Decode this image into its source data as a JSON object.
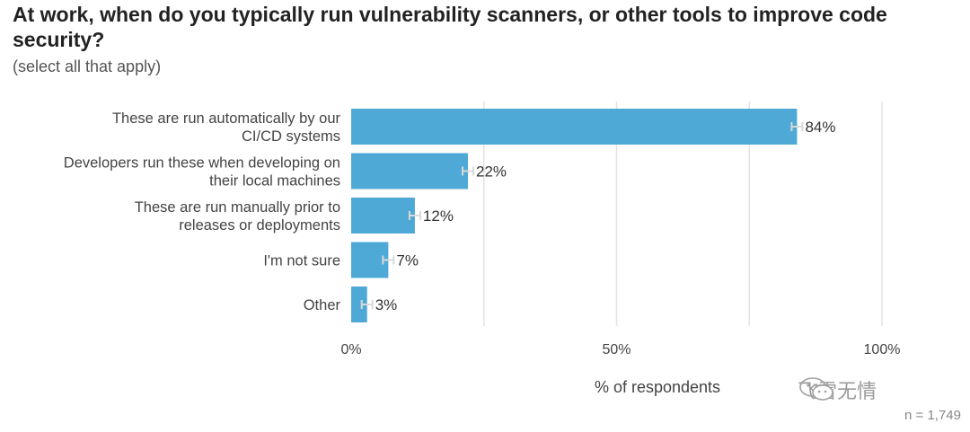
{
  "title": "At work, when do you typically run vulnerability scanners, or other tools to improve code security?",
  "subtitle": "(select all that apply)",
  "watermark": "飞雪无情",
  "n_label": "n =  1,749",
  "chart_data": {
    "type": "bar",
    "orientation": "horizontal",
    "categories": [
      [
        "These are run automatically by our",
        "CI/CD systems"
      ],
      [
        "Developers run these when developing on",
        "their local machines"
      ],
      [
        "These are run manually prior to",
        "releases or deployments"
      ],
      [
        "I'm not sure"
      ],
      [
        "Other"
      ]
    ],
    "values": [
      84,
      22,
      12,
      7,
      3
    ],
    "value_labels": [
      "84%",
      "22%",
      "12%",
      "7%",
      "3%"
    ],
    "error_bars": true,
    "xlabel": "% of respondents",
    "xlim": [
      0,
      100
    ],
    "xticks": [
      0,
      50,
      100
    ],
    "xtick_labels": [
      "0%",
      "50%",
      "100%"
    ],
    "grid": true,
    "colors": {
      "bar": "#4fa9d6",
      "grid": "#e3e3e3",
      "error": "#d9d9d9"
    }
  }
}
